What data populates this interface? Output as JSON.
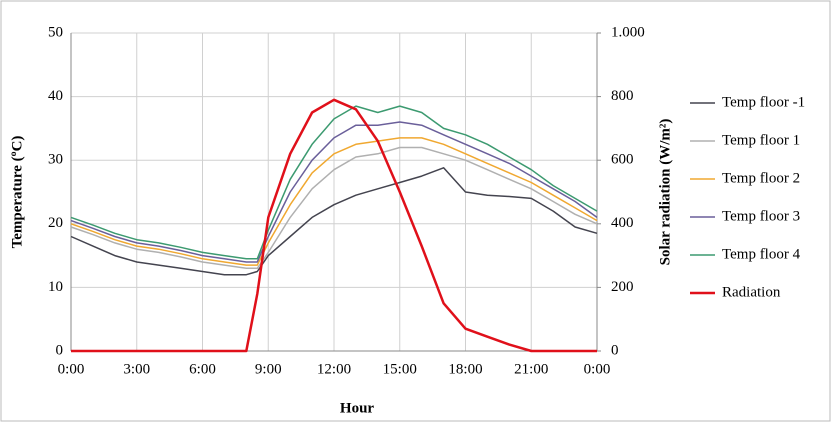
{
  "chart_data": {
    "type": "line",
    "x_label": "Hour",
    "y_label": "Temperature (ºC)",
    "y2_label": "Solar radiation (W/m²)",
    "x": [
      0,
      1,
      2,
      3,
      4,
      5,
      6,
      7,
      8,
      8.5,
      9,
      10,
      11,
      12,
      13,
      14,
      15,
      16,
      17,
      18,
      19,
      20,
      21,
      22,
      23,
      24
    ],
    "xlim": [
      0,
      24
    ],
    "xticks": [
      {
        "value": 0,
        "label": "0:00"
      },
      {
        "value": 3,
        "label": "3:00"
      },
      {
        "value": 6,
        "label": "6:00"
      },
      {
        "value": 9,
        "label": "9:00"
      },
      {
        "value": 12,
        "label": "12:00"
      },
      {
        "value": 15,
        "label": "15:00"
      },
      {
        "value": 18,
        "label": "18:00"
      },
      {
        "value": 21,
        "label": "21:00"
      },
      {
        "value": 24,
        "label": "0:00"
      }
    ],
    "ylim": [
      0,
      50
    ],
    "yticks": [
      0,
      10,
      20,
      30,
      40,
      50
    ],
    "y2lim": [
      0,
      1000
    ],
    "y2ticks": [
      0,
      200,
      400,
      600,
      800,
      {
        "value": 1000,
        "label": "1.000"
      }
    ],
    "grid": true,
    "legend": "right",
    "series": [
      {
        "name": "Temp floor -1",
        "color": "#44444f",
        "values": [
          18,
          16.5,
          15,
          14,
          13.5,
          13,
          12.5,
          12,
          12,
          12.5,
          15,
          18,
          21,
          23,
          24.5,
          25.5,
          26.5,
          27.5,
          28.8,
          25,
          24.5,
          24.3,
          24,
          22,
          19.5,
          18.5
        ]
      },
      {
        "name": "Temp floor 1",
        "color": "#b0b0b0",
        "values": [
          19.5,
          18.3,
          17,
          16,
          15.5,
          14.8,
          14,
          13.5,
          13,
          13,
          15.5,
          21,
          25.5,
          28.5,
          30.5,
          31,
          32,
          32,
          31,
          30,
          28.5,
          27,
          25.5,
          23.5,
          21.5,
          20
        ]
      },
      {
        "name": "Temp floor 2",
        "color": "#f0a830",
        "values": [
          20,
          18.8,
          17.5,
          16.5,
          16,
          15.3,
          14.5,
          14,
          13.5,
          13.5,
          17,
          23,
          28,
          31,
          32.5,
          33,
          33.5,
          33.5,
          32.5,
          31,
          29.5,
          28,
          26.5,
          24.5,
          22.5,
          20.5
        ]
      },
      {
        "name": "Temp floor 3",
        "color": "#6a5f9a",
        "values": [
          20.5,
          19.3,
          18,
          17,
          16.5,
          15.8,
          15,
          14.5,
          14,
          14,
          18,
          25,
          30,
          33.5,
          35.5,
          35.5,
          36,
          35.5,
          34,
          32.5,
          31,
          29.5,
          27.5,
          25.5,
          23.5,
          21
        ]
      },
      {
        "name": "Temp floor 4",
        "color": "#3c9a70",
        "values": [
          21,
          19.8,
          18.5,
          17.5,
          17,
          16.3,
          15.5,
          15,
          14.5,
          14.5,
          19,
          27,
          32.5,
          36.5,
          38.5,
          37.5,
          38.5,
          37.5,
          35,
          34,
          32.5,
          30.5,
          28.5,
          26,
          24,
          22
        ]
      },
      {
        "name": "Radiation",
        "color": "#e0101a",
        "axis": "y2",
        "values": [
          0,
          0,
          0,
          0,
          0,
          0,
          0,
          0,
          0,
          180,
          420,
          620,
          750,
          790,
          760,
          660,
          500,
          330,
          150,
          70,
          45,
          20,
          0,
          0,
          0,
          0
        ]
      }
    ]
  }
}
